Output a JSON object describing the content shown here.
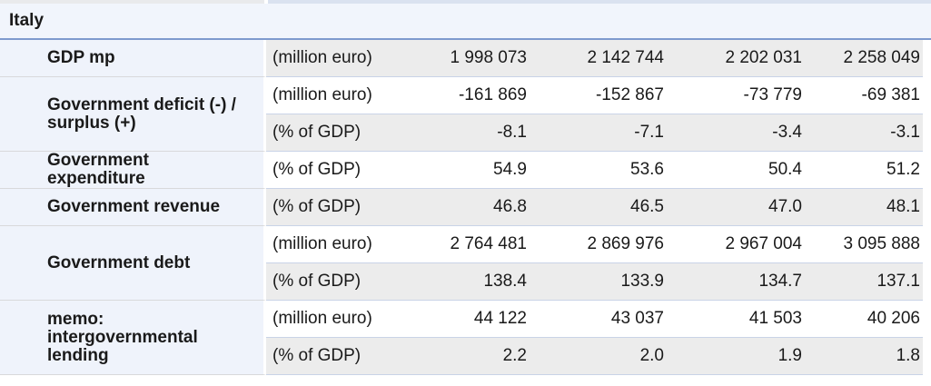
{
  "country_header": {
    "label": "Italy"
  },
  "table": {
    "value_column_count": 4,
    "groups": [
      {
        "label": "GDP mp",
        "rows": [
          {
            "unit": "(million euro)",
            "values": [
              "1 998 073",
              "2 142 744",
              "2 202 031",
              "2 258 049"
            ]
          }
        ]
      },
      {
        "label": "Government deficit (-) / surplus (+)",
        "rows": [
          {
            "unit": "(million euro)",
            "values": [
              "-161 869",
              "-152 867",
              "-73 779",
              "-69 381"
            ]
          },
          {
            "unit": "(% of GDP)",
            "values": [
              "-8.1",
              "-7.1",
              "-3.4",
              "-3.1"
            ]
          }
        ]
      },
      {
        "label": "Government expenditure",
        "rows": [
          {
            "unit": "(% of GDP)",
            "values": [
              "54.9",
              "53.6",
              "50.4",
              "51.2"
            ]
          }
        ]
      },
      {
        "label": "Government revenue",
        "rows": [
          {
            "unit": "(% of GDP)",
            "values": [
              "46.8",
              "46.5",
              "47.0",
              "48.1"
            ]
          }
        ]
      },
      {
        "label": "Government debt",
        "rows": [
          {
            "unit": "(million euro)",
            "values": [
              "2 764 481",
              "2 869 976",
              "2 967 004",
              "3 095 888"
            ]
          },
          {
            "unit": "(% of GDP)",
            "values": [
              "138.4",
              "133.9",
              "134.7",
              "137.1"
            ]
          }
        ]
      },
      {
        "label": "memo: intergovernmental lending",
        "rows": [
          {
            "unit": "(million euro)",
            "values": [
              "44 122",
              "43 037",
              "41 503",
              "40 206"
            ]
          },
          {
            "unit": "(% of GDP)",
            "values": [
              "2.2",
              "2.0",
              "1.9",
              "1.8"
            ]
          }
        ]
      }
    ]
  },
  "chart_data": {
    "type": "table",
    "title": "Italy",
    "rows": [
      {
        "indicator": "GDP mp",
        "unit": "million euro",
        "values": [
          1998073,
          2142744,
          2202031,
          2258049
        ]
      },
      {
        "indicator": "Government deficit (-) / surplus (+)",
        "unit": "million euro",
        "values": [
          -161869,
          -152867,
          -73779,
          -69381
        ]
      },
      {
        "indicator": "Government deficit (-) / surplus (+)",
        "unit": "% of GDP",
        "values": [
          -8.1,
          -7.1,
          -3.4,
          -3.1
        ]
      },
      {
        "indicator": "Government expenditure",
        "unit": "% of GDP",
        "values": [
          54.9,
          53.6,
          50.4,
          51.2
        ]
      },
      {
        "indicator": "Government revenue",
        "unit": "% of GDP",
        "values": [
          46.8,
          46.5,
          47.0,
          48.1
        ]
      },
      {
        "indicator": "Government debt",
        "unit": "million euro",
        "values": [
          2764481,
          2869976,
          2967004,
          3095888
        ]
      },
      {
        "indicator": "Government debt",
        "unit": "% of GDP",
        "values": [
          138.4,
          133.9,
          134.7,
          137.1
        ]
      },
      {
        "indicator": "memo: intergovernmental lending",
        "unit": "million euro",
        "values": [
          44122,
          43037,
          41503,
          40206
        ]
      },
      {
        "indicator": "memo: intergovernmental lending",
        "unit": "% of GDP",
        "values": [
          2.2,
          2.0,
          1.9,
          1.8
        ]
      }
    ]
  },
  "colors": {
    "header_bg": "#f1f5fc",
    "header_border_blue": "#7e9ace",
    "label_column_bg": "#eff3fb",
    "stripe_gray": "#ececec",
    "stripe_white": "#ffffff",
    "value_row_border": "#c9d3e7",
    "label_row_border": "#d8d9db",
    "top_strip_left": "#e9eaec",
    "top_strip_right": "#dae2f0"
  }
}
